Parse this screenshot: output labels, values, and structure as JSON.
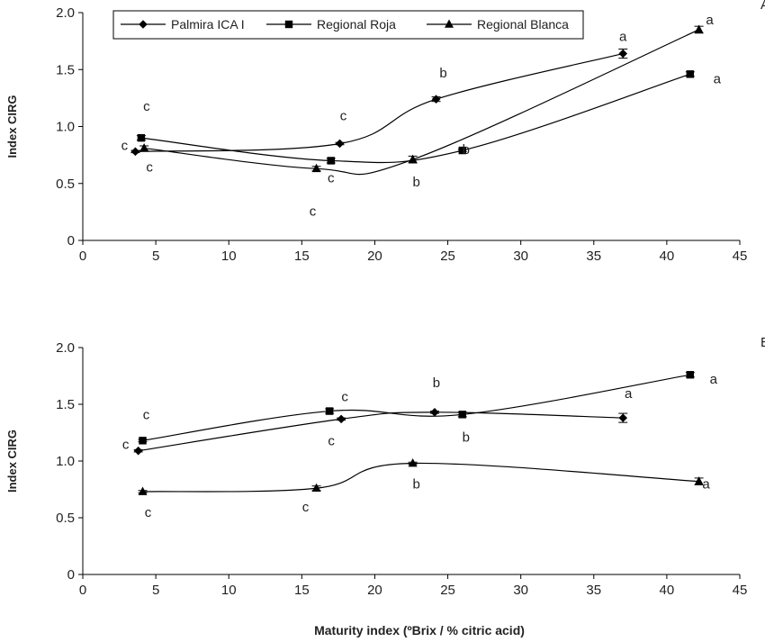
{
  "xlabel": "Maturity index (ºBrix / % citric acid)",
  "legend": [
    "Palmira ICA I",
    "Regional Roja",
    "Regional Blanca"
  ],
  "panel_letters": [
    "A",
    "B"
  ],
  "chart_data": [
    {
      "type": "line",
      "panel": "top",
      "ylabel": "Index CIRG",
      "xlim": [
        0,
        45
      ],
      "ylim": [
        0,
        2.0
      ],
      "xticks": [
        0,
        5,
        10,
        15,
        20,
        25,
        30,
        35,
        40,
        45
      ],
      "yticks": [
        "0",
        "0.5",
        "1.0",
        "1.5",
        "2.0"
      ],
      "legend_placement": "top-left",
      "grid": false,
      "series": [
        {
          "name": "Palmira ICA I",
          "marker": "diamond",
          "x": [
            3.6,
            17.6,
            24.2,
            37.0
          ],
          "y": [
            0.78,
            0.85,
            1.24,
            1.64
          ],
          "err": [
            0.01,
            0.01,
            0.02,
            0.04
          ],
          "labels": [
            "c",
            "c",
            "b",
            "a"
          ]
        },
        {
          "name": "Regional Roja",
          "marker": "square",
          "x": [
            4.0,
            17.0,
            26.0,
            41.6
          ],
          "y": [
            0.9,
            0.7,
            0.79,
            1.46
          ],
          "err": [
            0.02,
            0.02,
            0.01,
            0.02
          ],
          "labels": [
            "c",
            "c",
            "b",
            "a"
          ]
        },
        {
          "name": "Regional Blanca",
          "marker": "triangle",
          "x": [
            4.2,
            16.0,
            22.6,
            42.2
          ],
          "y": [
            0.81,
            0.63,
            0.71,
            1.85
          ],
          "err": [
            0.02,
            0.02,
            0.03,
            0.03
          ],
          "labels": [
            "c",
            "c",
            "b",
            "a"
          ]
        }
      ]
    },
    {
      "type": "line",
      "panel": "bottom",
      "ylabel": "Index CIRG",
      "xlim": [
        0,
        45
      ],
      "ylim": [
        0,
        2.0
      ],
      "xticks": [
        0,
        5,
        10,
        15,
        20,
        25,
        30,
        35,
        40,
        45
      ],
      "yticks": [
        "0",
        "0.5",
        "1.0",
        "1.5",
        "2.0"
      ],
      "grid": false,
      "series": [
        {
          "name": "Palmira ICA I",
          "marker": "diamond",
          "x": [
            3.8,
            17.7,
            24.1,
            37.0
          ],
          "y": [
            1.09,
            1.37,
            1.43,
            1.38
          ],
          "err": [
            0.01,
            0.01,
            0.01,
            0.04
          ],
          "labels": [
            "c",
            "c",
            "b",
            "a"
          ]
        },
        {
          "name": "Regional Roja",
          "marker": "square",
          "x": [
            4.1,
            16.9,
            26.0,
            41.6
          ],
          "y": [
            1.18,
            1.44,
            1.41,
            1.76
          ],
          "err": [
            0.01,
            0.02,
            0.02,
            0.02
          ],
          "labels": [
            "c",
            "c",
            "b",
            "a"
          ]
        },
        {
          "name": "Regional Blanca",
          "marker": "triangle",
          "x": [
            4.1,
            16.0,
            22.6,
            42.2
          ],
          "y": [
            0.73,
            0.76,
            0.98,
            0.82
          ],
          "err": [
            0.01,
            0.02,
            0.01,
            0.03
          ],
          "labels": [
            "c",
            "c",
            "b",
            "a"
          ]
        }
      ]
    }
  ]
}
